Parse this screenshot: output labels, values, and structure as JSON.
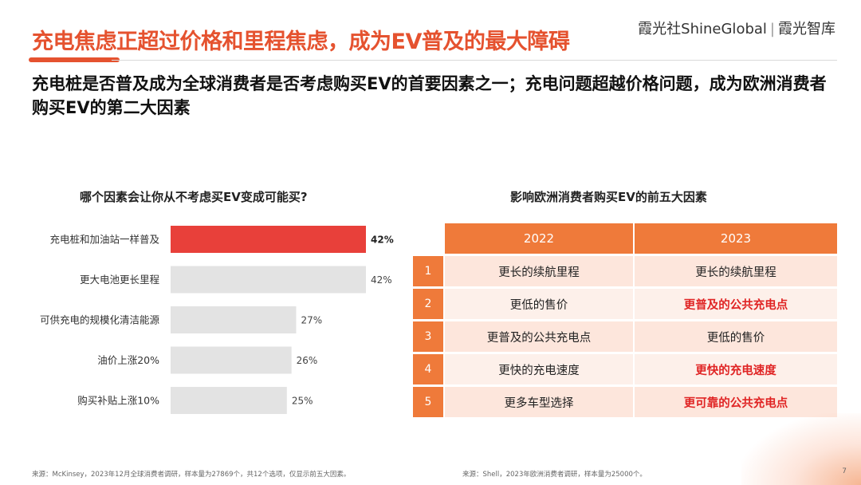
{
  "header": {
    "title": "充电焦虑正超过价格和里程焦虑，成为EV普及的最大障碍",
    "brand_left": "霞光社ShineGlobal",
    "brand_sep": "|",
    "brand_right": "霞光智库"
  },
  "subtitle": "充电桩是否普及成为全球消费者是否考虑购买EV的首要因素之一；充电问题超越价格问题，成为欧洲消费者购买EV的第二大因素",
  "chart_data": {
    "type": "bar",
    "orientation": "horizontal",
    "title": "哪个因素会让你从不考虑买EV变成可能买?",
    "categories": [
      "充电桩和加油站一样普及",
      "更大电池更长里程",
      "可供充电的规模化清洁能源",
      "油价上涨20%",
      "购买补贴上涨10%"
    ],
    "values": [
      42,
      42,
      27,
      26,
      25
    ],
    "value_labels": [
      "42%",
      "42%",
      "27%",
      "26%",
      "25%"
    ],
    "highlight_index": 0,
    "xlim": [
      0,
      50
    ],
    "colors": {
      "highlight": "#e8403a",
      "default": "#e3e3e3"
    }
  },
  "table": {
    "title": "影响欧洲消费者购买EV的前五大因素",
    "headers": [
      "2022",
      "2023"
    ],
    "rows": [
      {
        "rank": "1",
        "y2022": "更长的续航里程",
        "y2023": "更长的续航里程",
        "highlight2023": false
      },
      {
        "rank": "2",
        "y2022": "更低的售价",
        "y2023": "更普及的公共充电点",
        "highlight2023": true
      },
      {
        "rank": "3",
        "y2022": "更普及的公共充电点",
        "y2023": "更低的售价",
        "highlight2023": false
      },
      {
        "rank": "4",
        "y2022": "更快的充电速度",
        "y2023": "更快的充电速度",
        "highlight2023": true
      },
      {
        "rank": "5",
        "y2022": "更多车型选择",
        "y2023": "更可靠的公共充电点",
        "highlight2023": true
      }
    ]
  },
  "footnotes": {
    "left": "来源：McKinsey，2023年12月全球消费者调研，样本量为27869个，共12个选项，仅显示前五大因素。",
    "right": "来源：Shell，2023年欧洲消费者调研，样本量为25000个。",
    "page": "7"
  },
  "colors": {
    "accent": "#e5522f",
    "table_orange": "#ef7a3a",
    "red_text": "#e02424"
  }
}
